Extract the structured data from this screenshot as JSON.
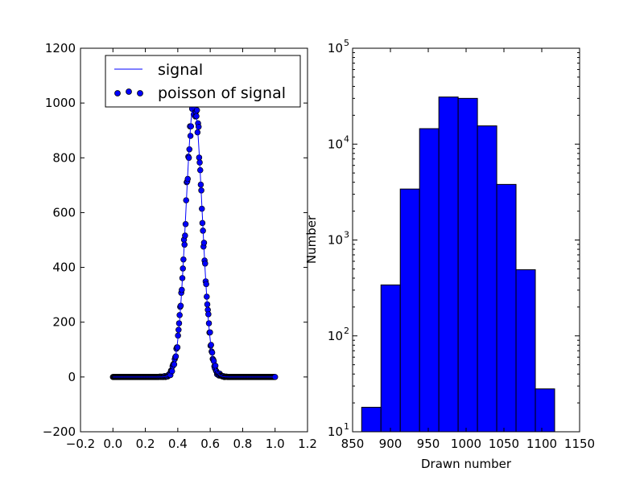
{
  "chart_data": [
    {
      "type": "line+scatter",
      "title": "",
      "xlabel": "",
      "ylabel": "",
      "xlim": [
        -0.2,
        1.2
      ],
      "ylim": [
        -200,
        1200
      ],
      "xticks": [
        -0.2,
        0.0,
        0.2,
        0.4,
        0.6,
        0.8,
        1.0,
        1.2
      ],
      "yticks": [
        -200,
        0,
        200,
        400,
        600,
        800,
        1000,
        1200
      ],
      "xtick_labels": [
        "−0.2",
        "0.0",
        "0.2",
        "0.4",
        "0.6",
        "0.8",
        "1.0",
        "1.2"
      ],
      "ytick_labels": [
        "−200",
        "0",
        "200",
        "400",
        "600",
        "800",
        "1000",
        "1200"
      ],
      "legend_position": "top-right",
      "grid": false,
      "series": [
        {
          "name": "signal",
          "kind": "line",
          "color": "#0000ff",
          "model": "gaussian",
          "amplitude": 1000,
          "center": 0.5,
          "sigma": 0.05,
          "x_range": [
            0.0,
            1.0
          ],
          "n_points": 300
        },
        {
          "name": "poisson of signal",
          "kind": "scatter",
          "color": "#0000ff",
          "edgecolor": "#000000",
          "model": "poisson of signal",
          "n_points": 300
        }
      ]
    },
    {
      "type": "histogram",
      "title": "",
      "xlabel": "Drawn number",
      "ylabel": "Number",
      "yscale": "log",
      "xlim": [
        850,
        1150
      ],
      "ylim": [
        10,
        100000
      ],
      "xticks": [
        850,
        900,
        950,
        1000,
        1050,
        1100,
        1150
      ],
      "xtick_labels": [
        "850",
        "900",
        "950",
        "1000",
        "1050",
        "1100",
        "1150"
      ],
      "yticks": [
        {
          "value": 10,
          "base": "10",
          "exp": "1"
        },
        {
          "value": 100,
          "base": "10",
          "exp": "2"
        },
        {
          "value": 1000,
          "base": "10",
          "exp": "3"
        },
        {
          "value": 10000,
          "base": "10",
          "exp": "4"
        },
        {
          "value": 100000,
          "base": "10",
          "exp": "5"
        }
      ],
      "color": "#0000ff",
      "edgecolor": "#000000",
      "bin_edges": [
        862,
        887.5,
        913,
        938.5,
        964,
        989.5,
        1015,
        1040.5,
        1066,
        1091.5,
        1117
      ],
      "values": [
        18,
        340,
        3400,
        14500,
        31000,
        30000,
        15500,
        3800,
        490,
        28
      ]
    }
  ]
}
